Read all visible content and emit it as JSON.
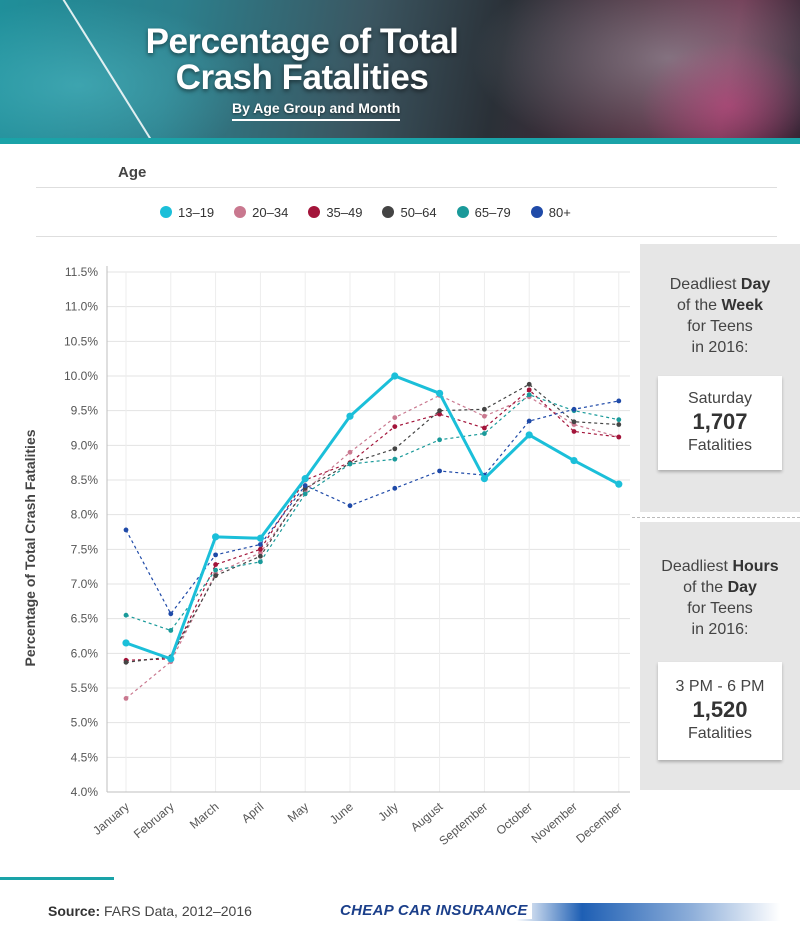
{
  "header": {
    "title_line1": "Percentage of Total",
    "title_line2": "Crash Fatalities",
    "subtitle": "By Age Group and Month"
  },
  "legend": {
    "heading": "Age",
    "items": [
      {
        "label": "13–19",
        "color": "#1bbfd9"
      },
      {
        "label": "20–34",
        "color": "#c9788f"
      },
      {
        "label": "35–49",
        "color": "#a3143a"
      },
      {
        "label": "50–64",
        "color": "#444444"
      },
      {
        "label": "65–79",
        "color": "#1a9a9a"
      },
      {
        "label": "80+",
        "color": "#1f4aa8"
      }
    ]
  },
  "chart_data": {
    "type": "line",
    "ylabel": "Percentage of Total Crash Fatalities",
    "xlabel": "",
    "x": [
      "January",
      "February",
      "March",
      "April",
      "May",
      "June",
      "July",
      "August",
      "September",
      "October",
      "November",
      "December"
    ],
    "ylim": [
      4.0,
      11.5
    ],
    "yticks": [
      "4.0%",
      "4.5%",
      "5.0%",
      "5.5%",
      "6.0%",
      "6.5%",
      "7.0%",
      "7.5%",
      "8.0%",
      "8.5%",
      "9.0%",
      "9.5%",
      "10.0%",
      "10.5%",
      "11.0%",
      "11.5%"
    ],
    "grid": true,
    "legend": "top",
    "series": [
      {
        "name": "13–19",
        "color": "#1bbfd9",
        "style": "solid",
        "values": [
          6.15,
          5.92,
          7.68,
          7.66,
          8.52,
          9.42,
          10.0,
          9.75,
          8.52,
          9.15,
          8.78,
          8.44
        ]
      },
      {
        "name": "20–34",
        "color": "#c9788f",
        "style": "dashed",
        "values": [
          5.35,
          5.88,
          7.15,
          7.45,
          8.35,
          8.9,
          9.4,
          9.72,
          9.42,
          9.7,
          9.3,
          9.12
        ]
      },
      {
        "name": "35–49",
        "color": "#a3143a",
        "style": "dashed",
        "values": [
          5.9,
          5.92,
          7.28,
          7.5,
          8.5,
          8.75,
          9.27,
          9.45,
          9.25,
          9.8,
          9.2,
          9.12
        ]
      },
      {
        "name": "50–64",
        "color": "#444444",
        "style": "dashed",
        "values": [
          5.87,
          5.95,
          7.12,
          7.4,
          8.38,
          8.74,
          8.95,
          9.5,
          9.52,
          9.88,
          9.34,
          9.3
        ]
      },
      {
        "name": "65–79",
        "color": "#1a9a9a",
        "style": "dashed",
        "values": [
          6.55,
          6.33,
          7.2,
          7.32,
          8.3,
          8.73,
          8.8,
          9.08,
          9.17,
          9.73,
          9.5,
          9.37
        ]
      },
      {
        "name": "80+",
        "color": "#1f4aa8",
        "style": "dashed",
        "values": [
          7.78,
          6.57,
          7.42,
          7.57,
          8.42,
          8.13,
          8.38,
          8.63,
          8.57,
          9.35,
          9.52,
          9.64
        ]
      }
    ]
  },
  "panels": {
    "day": {
      "line1_pre": "Deadliest ",
      "line1_bold": "Day",
      "line2_pre": "of the ",
      "line2_bold": "Week",
      "line3": "for Teens",
      "line4": "in 2016:",
      "card_line1": "Saturday",
      "card_value": "1,707",
      "card_line3": "Fatalities"
    },
    "hours": {
      "line1_pre": "Deadliest ",
      "line1_bold": "Hours",
      "line2_pre": "of the ",
      "line2_bold": "Day",
      "line3": "for Teens",
      "line4": "in 2016:",
      "card_line1": "3 PM - 6 PM",
      "card_value": "1,520",
      "card_line3": "Fatalities"
    }
  },
  "footer": {
    "source_label": "Source:",
    "source_text": " FARS Data, 2012–2016",
    "brand": "CHEAP CAR INSURANCE"
  }
}
